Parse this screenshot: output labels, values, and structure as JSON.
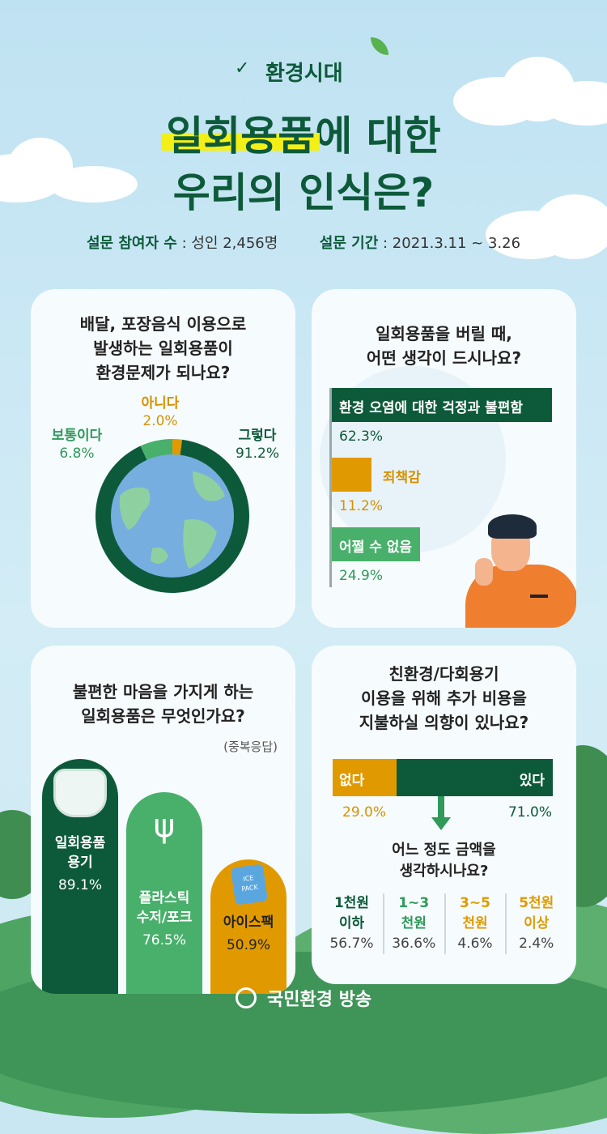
{
  "brand": "환경시대",
  "title": {
    "line1_highlight": "일회용품",
    "line1_rest": "에 대한",
    "line2": "우리의 인식은?"
  },
  "survey": {
    "participants_label": "설문 참여자 수",
    "participants_value": " : 성인 2,456명",
    "period_label": "설문 기간",
    "period_value": " : 2021.3.11 ~ 3.26"
  },
  "q1": {
    "question": [
      "배달, 포장음식 이용으로",
      "발생하는 일회용품이",
      "환경문제가 되나요?"
    ],
    "answers": [
      {
        "label": "그렇다",
        "value": "91.2%"
      },
      {
        "label": "보통이다",
        "value": "6.8%"
      },
      {
        "label": "아니다",
        "value": "2.0%"
      }
    ]
  },
  "q2": {
    "question": [
      "일회용품을 버릴 때,",
      "어떤 생각이 드시나요?"
    ],
    "answers": [
      {
        "label": "환경 오염에 대한 걱정과 불편함",
        "value": "62.3%"
      },
      {
        "label": "죄책감",
        "value": "11.2%"
      },
      {
        "label": "어쩔 수 없음",
        "value": "24.9%"
      }
    ]
  },
  "q3": {
    "question": [
      "불편한 마음을 가지게 하는",
      "일회용품은 무엇인가요?"
    ],
    "note": "(중복응답)",
    "answers": [
      {
        "label1": "일회용품",
        "label2": "용기",
        "value": "89.1%"
      },
      {
        "label1": "플라스틱",
        "label2": "수저/포크",
        "value": "76.5%"
      },
      {
        "label1": "아이스팩",
        "label2": "",
        "value": "50.9%"
      }
    ],
    "icepack_text": [
      "ICE",
      "PACK"
    ]
  },
  "q4": {
    "question": [
      "친환경/다회용기",
      "이용을 위해 추가 비용을",
      "지불하실 의향이 있나요?"
    ],
    "no_label": "없다",
    "yes_label": "있다",
    "no_value": "29.0%",
    "yes_value": "71.0%",
    "sub_question": [
      "어느 정도 금액을",
      "생각하시나요?"
    ],
    "amounts": [
      {
        "line1": "1천원",
        "line2": "이하",
        "value": "56.7%"
      },
      {
        "line1": "1~3",
        "line2": "천원",
        "value": "36.6%"
      },
      {
        "line1": "3~5",
        "line2": "천원",
        "value": "4.6%"
      },
      {
        "line1": "5천원",
        "line2": "이상",
        "value": "2.4%"
      }
    ]
  },
  "footer": "국민환경 방송",
  "chart_data": [
    {
      "type": "pie",
      "categories": [
        "그렇다",
        "보통이다",
        "아니다"
      ],
      "values": [
        91.2,
        6.8,
        2.0
      ]
    },
    {
      "type": "bar",
      "categories": [
        "환경 오염에 대한 걱정과 불편함",
        "죄책감",
        "어쩔 수 없음"
      ],
      "values": [
        62.3,
        11.2,
        24.9
      ]
    },
    {
      "type": "bar",
      "categories": [
        "일회용품 용기",
        "플라스틱 수저/포크",
        "아이스팩"
      ],
      "values": [
        89.1,
        76.5,
        50.9
      ]
    },
    {
      "type": "bar",
      "categories": [
        "없다",
        "있다"
      ],
      "values": [
        29.0,
        71.0
      ]
    },
    {
      "type": "table",
      "categories": [
        "1천원 이하",
        "1~3 천원",
        "3~5 천원",
        "5천원 이상"
      ],
      "values": [
        56.7,
        36.6,
        4.6,
        2.4
      ]
    }
  ],
  "colors": {
    "dark_green": "#0d5a3a",
    "mid_green": "#2f9a5a",
    "light_green": "#48b06a",
    "orange": "#e09a00",
    "sky": "#c9e6f3"
  }
}
